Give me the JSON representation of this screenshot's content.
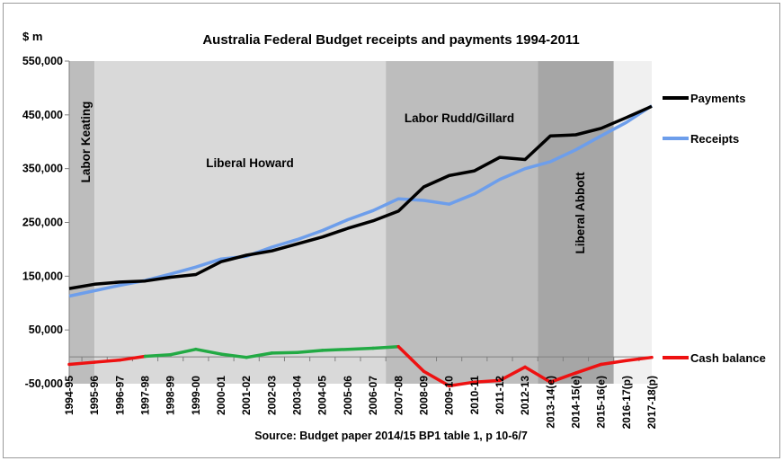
{
  "chart_data": {
    "type": "line",
    "title": "Australia Federal Budget receipts and payments 1994-2011",
    "unit_label": "$ m",
    "source": "Source: Budget paper 2014/15 BP1 table 1, p 10-6/7",
    "ylim": [
      -50000,
      550000
    ],
    "yticks": [
      -50000,
      50000,
      150000,
      250000,
      350000,
      450000,
      550000
    ],
    "ytick_labels": [
      "-50,000",
      "50,000",
      "150,000",
      "250,000",
      "350,000",
      "450,000",
      "550,000"
    ],
    "categories": [
      "1994-95",
      "1995-96",
      "1996-97",
      "1997-98",
      "1998-99",
      "1999-00",
      "2000-01",
      "2001-02",
      "2002-03",
      "2003-04",
      "2004-05",
      "2005-06",
      "2006-07",
      "2007-08",
      "2008-09",
      "2009-10",
      "2010-11",
      "2011-12",
      "2012-13",
      "2013-14(e)",
      "2014-15(e)",
      "2015-16(e)",
      "2016-17(p)",
      "2017-18(p)"
    ],
    "series": [
      {
        "name": "Payments",
        "color": "#000000",
        "values": [
          127000,
          135000,
          139000,
          141000,
          148000,
          153000,
          177000,
          189000,
          197000,
          210000,
          223000,
          239000,
          253000,
          271000,
          316000,
          337000,
          346000,
          371000,
          367000,
          411000,
          413000,
          425000,
          445000,
          466000
        ]
      },
      {
        "name": "Receipts",
        "color": "#6d9eeb",
        "values": [
          113000,
          123000,
          133000,
          142000,
          154000,
          167000,
          182000,
          187000,
          204000,
          218000,
          235000,
          255000,
          272000,
          294000,
          291000,
          284000,
          303000,
          330000,
          350000,
          363000,
          385000,
          411000,
          436000,
          467000
        ]
      },
      {
        "name": "Cash balance",
        "values": [
          -14000,
          -10000,
          -6000,
          1000,
          4000,
          14000,
          5000,
          -1000,
          7000,
          8000,
          12000,
          14000,
          16000,
          19000,
          -27000,
          -54000,
          -47000,
          -44000,
          -19000,
          -47000,
          -30000,
          -14000,
          -7000,
          -1000
        ],
        "segment_colors": {
          "negative": "#ee1111",
          "positive": "#22aa44"
        }
      }
    ],
    "periods": [
      {
        "label": "Labor Keating",
        "start": -0.5,
        "end": 1.0,
        "color": "#bdbdbd",
        "orientation": "vertical"
      },
      {
        "label": "Liberal Howard",
        "start": 1.0,
        "end": 12.5,
        "color": "#d9d9d9",
        "orientation": "horizontal"
      },
      {
        "label": "Labor Rudd/Gillard",
        "start": 12.5,
        "end": 18.5,
        "color": "#bdbdbd",
        "orientation": "horizontal"
      },
      {
        "label": "Liberal Abbott",
        "start": 18.5,
        "end": 21.5,
        "color": "#a6a6a6",
        "orientation": "vertical"
      },
      {
        "label": "",
        "start": 21.5,
        "end": 23.0,
        "color": "#f0f0f0",
        "orientation": "horizontal"
      }
    ],
    "grid": false,
    "legend": "right"
  }
}
